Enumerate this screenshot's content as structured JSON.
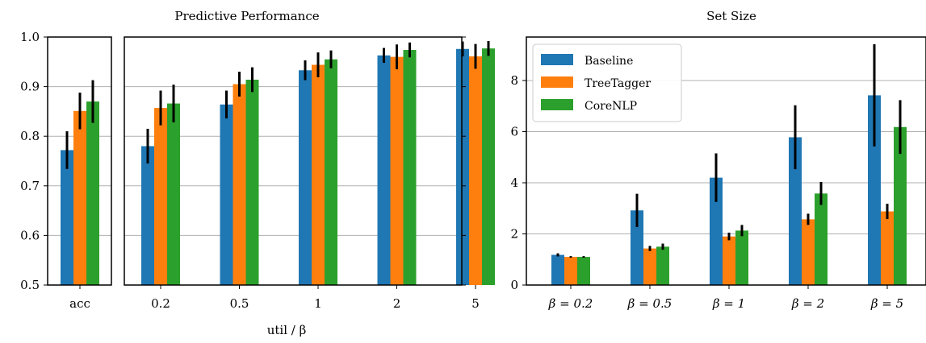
{
  "colors": {
    "Baseline": "#1f77b4",
    "TreeTagger": "#ff7f0e",
    "CoreNLP": "#2ca02c",
    "error_bar": "#000000",
    "grid": "#b0b0b0"
  },
  "chart_data": [
    {
      "type": "bar",
      "title": "Predictive Performance",
      "xlabel": "util / β",
      "ylabel": "",
      "ylim": [
        0.5,
        1.0
      ],
      "yticks": [
        "0.5",
        "0.6",
        "0.7",
        "0.8",
        "0.9",
        "1.0"
      ],
      "grid": "horizontal",
      "panels": [
        {
          "categories": [
            "acc"
          ],
          "series": [
            {
              "name": "Baseline",
              "values": [
                0.772
              ],
              "err": [
                0.038
              ]
            },
            {
              "name": "TreeTagger",
              "values": [
                0.851
              ],
              "err": [
                0.037
              ]
            },
            {
              "name": "CoreNLP",
              "values": [
                0.87
              ],
              "err": [
                0.043
              ]
            }
          ]
        },
        {
          "categories": [
            "0.2",
            "0.5",
            "1",
            "2",
            "5"
          ],
          "series": [
            {
              "name": "Baseline",
              "values": [
                0.78,
                0.864,
                0.933,
                0.963,
                0.976
              ],
              "err": [
                0.035,
                0.028,
                0.02,
                0.015,
                0.015
              ]
            },
            {
              "name": "TreeTagger",
              "values": [
                0.857,
                0.905,
                0.944,
                0.96,
                0.961
              ],
              "err": [
                0.035,
                0.025,
                0.025,
                0.025,
                0.025
              ]
            },
            {
              "name": "CoreNLP",
              "values": [
                0.866,
                0.914,
                0.955,
                0.974,
                0.977
              ],
              "err": [
                0.038,
                0.025,
                0.018,
                0.015,
                0.015
              ]
            }
          ]
        }
      ]
    },
    {
      "type": "bar",
      "title": "Set Size",
      "xlabel": "",
      "ylabel": "",
      "ylim": [
        0,
        9.7
      ],
      "yticks": [
        "0",
        "2",
        "4",
        "6",
        "8"
      ],
      "grid": "horizontal",
      "legend": "top-left",
      "categories": [
        "β = 0.2",
        "β = 0.5",
        "β = 1",
        "β = 2",
        "β = 5"
      ],
      "series": [
        {
          "name": "Baseline",
          "values": [
            1.18,
            2.92,
            4.2,
            5.78,
            7.42
          ],
          "err": [
            0.06,
            0.65,
            0.95,
            1.25,
            2.0
          ]
        },
        {
          "name": "TreeTagger",
          "values": [
            1.1,
            1.43,
            1.9,
            2.57,
            2.88
          ],
          "err": [
            0.03,
            0.1,
            0.15,
            0.22,
            0.3
          ]
        },
        {
          "name": "CoreNLP",
          "values": [
            1.1,
            1.5,
            2.13,
            3.58,
            6.18
          ],
          "err": [
            0.03,
            0.12,
            0.22,
            0.45,
            1.05
          ]
        }
      ]
    }
  ]
}
